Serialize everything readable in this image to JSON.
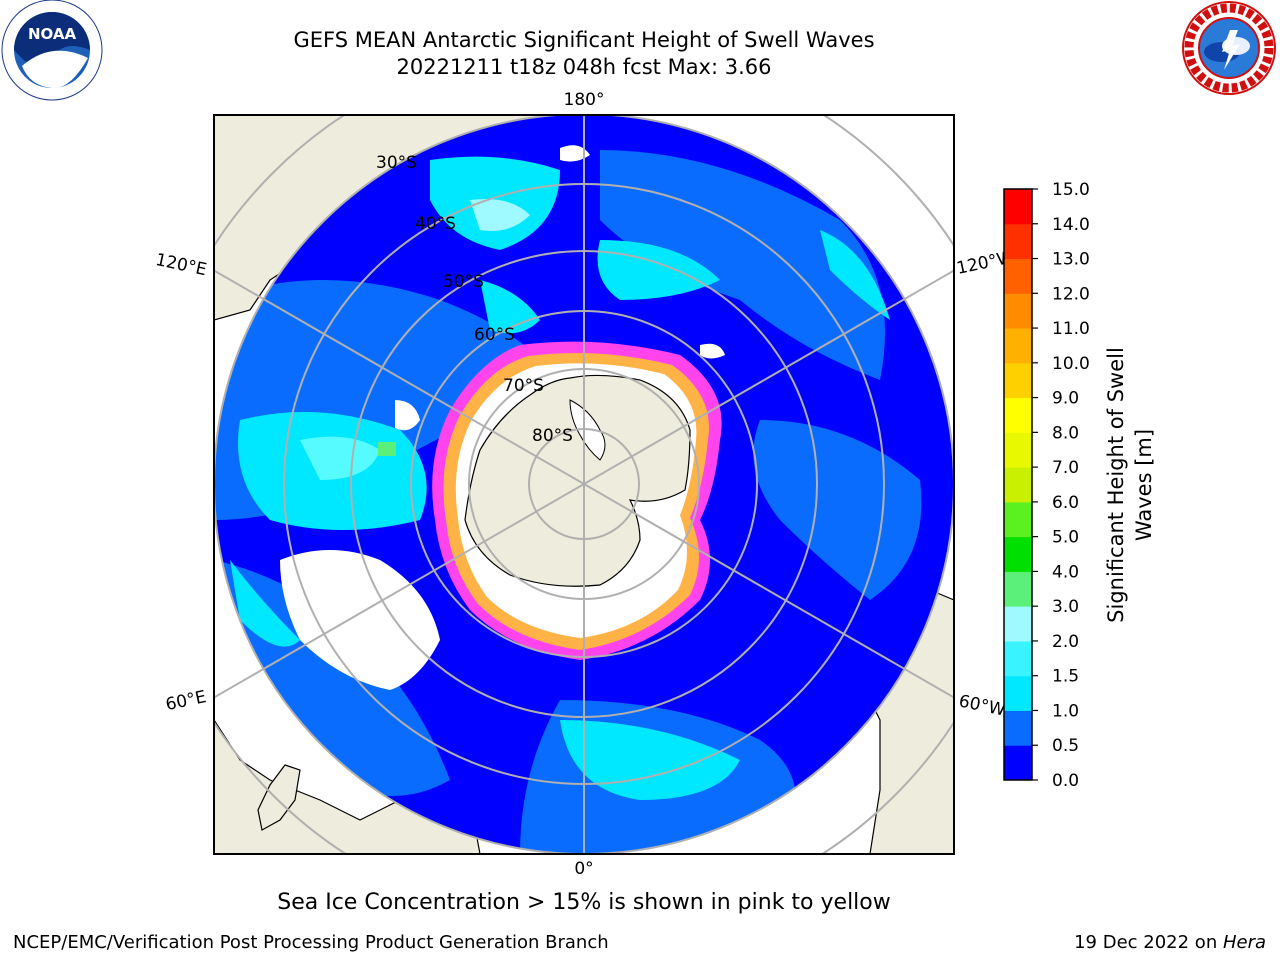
{
  "title": {
    "line1": "GEFS MEAN Antarctic Significant Height of Swell Waves",
    "line2": "20221211 t18z 048h fcst   Max: 3.66"
  },
  "map": {
    "projection": "south-polar-stereographic",
    "lat_labels": [
      "30°S",
      "40°S",
      "50°S",
      "60°S",
      "70°S",
      "80°S"
    ],
    "lon_labels": {
      "top": "180°",
      "bottom": "0°",
      "upper_left": "120°E",
      "lower_left": "60°E",
      "upper_right": "120°W",
      "lower_right": "60°W"
    },
    "colors": {
      "land": "#eeecdc",
      "ocean_low": "#0000ff",
      "ocean_0_5": "#0a6cff",
      "ocean_1_0": "#00e8ff",
      "ocean_1_5": "#55fbff",
      "sea_ice_edge": "#ff44ee",
      "sea_ice_mid": "#ffb347",
      "grid": "#b0b0b0"
    }
  },
  "colorbar": {
    "label_line1": "Significant Height of Swell",
    "label_line2": "Waves [m]",
    "ticks": [
      "0.0",
      "0.5",
      "1.0",
      "1.5",
      "2.0",
      "3.0",
      "4.0",
      "5.0",
      "6.0",
      "7.0",
      "8.0",
      "9.0",
      "10.0",
      "11.0",
      "12.0",
      "13.0",
      "14.0",
      "15.0"
    ],
    "colors": [
      "#0000ff",
      "#0a6cff",
      "#00e8ff",
      "#39f4ff",
      "#9ffaff",
      "#5af07a",
      "#00e000",
      "#5bf020",
      "#c8f000",
      "#e8f800",
      "#ffff00",
      "#ffd000",
      "#ffb000",
      "#ff8c00",
      "#ff6000",
      "#ff3000",
      "#ff0000"
    ]
  },
  "note": "Sea Ice Concentration > 15% is shown in pink to yellow",
  "footer": {
    "left": "NCEP/EMC/Verification Post Processing Product Generation Branch",
    "right_prefix": "19 Dec 2022 on ",
    "right_host": "Hera"
  },
  "logos": {
    "noaa": "NOAA",
    "nws": "NATIONAL WEATHER SERVICE"
  }
}
